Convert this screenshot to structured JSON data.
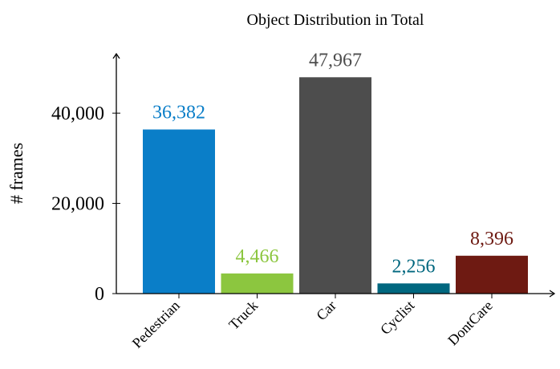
{
  "chart_data": {
    "type": "bar",
    "title": "Object Distribution in Total",
    "xlabel": "",
    "ylabel": "# frames",
    "categories": [
      "Pedestrian",
      "Truck",
      "Car",
      "Cyclist",
      "DontCare"
    ],
    "values": [
      36382,
      4466,
      47967,
      2256,
      8396
    ],
    "value_labels": [
      "36,382",
      "4,466",
      "47,967",
      "2,256",
      "8,396"
    ],
    "colors": [
      "#0a7ec8",
      "#8cc63f",
      "#4d4d4d",
      "#00677f",
      "#6e1a12"
    ],
    "label_colors": [
      "#0a7ec8",
      "#8cc63f",
      "#4d4d4d",
      "#00677f",
      "#6e1a12"
    ],
    "ylim": [
      0,
      53000
    ],
    "yticks": [
      0,
      20000,
      40000
    ],
    "ytick_labels": [
      "0",
      "20,000",
      "40,000"
    ],
    "grid": false
  }
}
